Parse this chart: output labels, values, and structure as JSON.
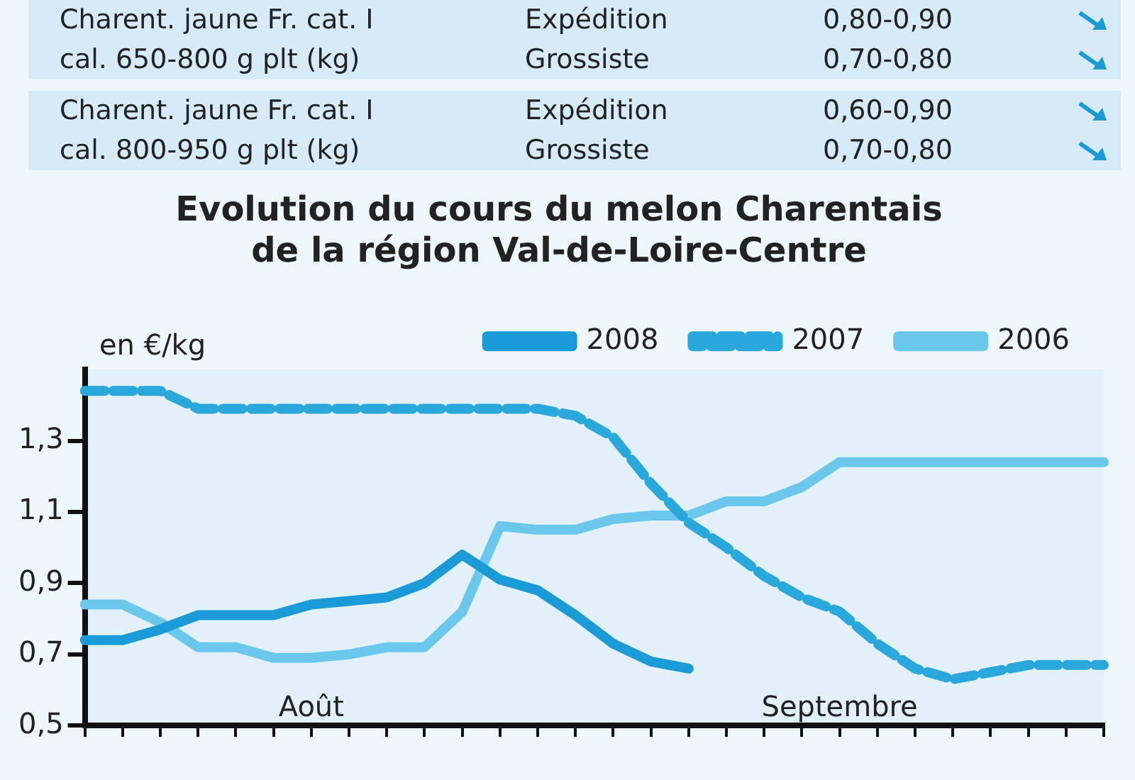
{
  "chart_data": {
    "type": "line",
    "title": [
      "Evolution du cours du melon Charentais",
      "de la région Val-de-Loire-Centre"
    ],
    "ylabel": "en €/kg",
    "annotations": [
      "Charent. jaune Fr. cat. I",
      "Expédition",
      "0,80-0,90",
      "cal. 650-800 g plt (kg)",
      "Grossiste",
      "0,70-0,80",
      "Charent. jaune Fr. cat. I",
      "Expédition",
      "0,60-0,90",
      "cal. 800-950 g plt (kg)",
      "Grossiste",
      "0,70-0,80",
      "Août",
      "Septembre"
    ],
    "categories": [
      null,
      null,
      null,
      null,
      null,
      null,
      null,
      null,
      null,
      null,
      null,
      null,
      null,
      null,
      null,
      null,
      null,
      null,
      null,
      null,
      null,
      null,
      null,
      null,
      null,
      null,
      null,
      null
    ],
    "series": [
      {
        "name": "2008",
        "color": "#1a9ad6",
        "line_style": "solid",
        "values": [
          0.74,
          0.74,
          0.77,
          0.81,
          0.81,
          0.81,
          0.84,
          0.85,
          0.86,
          0.9,
          0.98,
          0.91,
          0.88,
          0.81,
          0.73,
          0.68,
          0.66,
          null,
          null,
          null,
          null,
          null,
          null,
          null,
          null,
          null,
          null,
          null
        ]
      },
      {
        "name": "2007",
        "color": "#2aa8dc",
        "line_style": "dashed",
        "values": [
          1.44,
          1.44,
          1.44,
          1.39,
          1.39,
          1.39,
          1.39,
          1.39,
          1.39,
          1.39,
          1.39,
          1.39,
          1.39,
          1.37,
          1.31,
          1.18,
          1.07,
          1.0,
          0.92,
          0.86,
          0.82,
          0.73,
          0.66,
          0.63,
          0.65,
          0.67,
          0.67,
          0.67
        ]
      },
      {
        "name": "2006",
        "color": "#6cc7ec",
        "line_style": "solid",
        "values": [
          0.84,
          0.84,
          0.79,
          0.72,
          0.72,
          0.69,
          0.69,
          0.7,
          0.72,
          0.72,
          0.82,
          1.06,
          1.05,
          1.05,
          1.08,
          1.09,
          1.09,
          1.13,
          1.13,
          1.17,
          1.24,
          1.24,
          1.24,
          1.24,
          1.24,
          1.24,
          1.24,
          1.24
        ]
      }
    ],
    "ylim": [
      0.5,
      1.5
    ],
    "yticks": [
      {
        "value": 0.5,
        "label": "0,5"
      },
      {
        "value": 0.7,
        "label": "0,7"
      },
      {
        "value": 0.9,
        "label": "0,9"
      },
      {
        "value": 1.1,
        "label": "1,1"
      },
      {
        "value": 1.3,
        "label": "1,3"
      }
    ],
    "grid": false,
    "legend": "top",
    "marker": "none"
  }
}
